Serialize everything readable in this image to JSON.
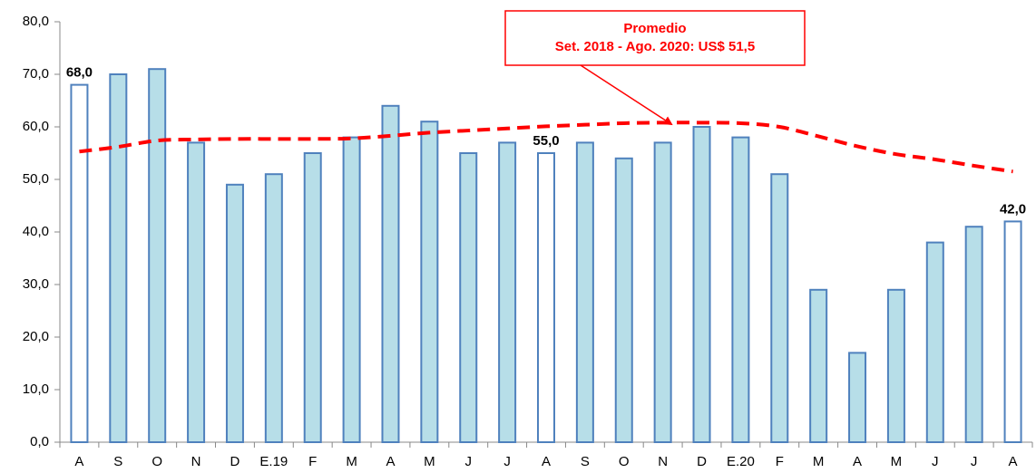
{
  "chart_data": {
    "type": "bar",
    "categories": [
      "A",
      "S",
      "O",
      "N",
      "D",
      "E.19",
      "F",
      "M",
      "A",
      "M",
      "J",
      "J",
      "A",
      "S",
      "O",
      "N",
      "D",
      "E.20",
      "F",
      "M",
      "A",
      "M",
      "J",
      "J",
      "A"
    ],
    "series": [
      {
        "type": "bar",
        "color": "#4f81bd",
        "fill_colors": [
          "#ffffff",
          "#b7dee8",
          "#b7dee8",
          "#b7dee8",
          "#b7dee8",
          "#b7dee8",
          "#b7dee8",
          "#b7dee8",
          "#b7dee8",
          "#b7dee8",
          "#b7dee8",
          "#b7dee8",
          "#ffffff",
          "#b7dee8",
          "#b7dee8",
          "#b7dee8",
          "#b7dee8",
          "#b7dee8",
          "#b7dee8",
          "#b7dee8",
          "#b7dee8",
          "#b7dee8",
          "#b7dee8",
          "#b7dee8",
          "#ffffff"
        ],
        "values": [
          68,
          70,
          71,
          57,
          49,
          51,
          55,
          58,
          64,
          61,
          55,
          57,
          55,
          57,
          54,
          57,
          60,
          58,
          51,
          29,
          17,
          29,
          38,
          41,
          42
        ],
        "value_labels": [
          "68,0",
          null,
          null,
          null,
          null,
          null,
          null,
          null,
          null,
          null,
          null,
          null,
          "55,0",
          null,
          null,
          null,
          null,
          null,
          null,
          null,
          null,
          null,
          null,
          null,
          "42,0"
        ]
      },
      {
        "type": "line",
        "color": "#ff0000",
        "dashed": true,
        "values": [
          55.3,
          56.2,
          57.4,
          57.6,
          57.7,
          57.7,
          57.7,
          57.8,
          58.3,
          58.9,
          59.3,
          59.7,
          60.1,
          60.4,
          60.7,
          60.8,
          60.8,
          60.7,
          60.0,
          58.2,
          56.3,
          54.8,
          53.8,
          52.6,
          51.5
        ]
      }
    ],
    "ylim": [
      0,
      80
    ],
    "yticks": [
      {
        "value": 0,
        "label": "0,0"
      },
      {
        "value": 10,
        "label": "10,0"
      },
      {
        "value": 20,
        "label": "20,0"
      },
      {
        "value": 30,
        "label": "30,0"
      },
      {
        "value": 40,
        "label": "40,0"
      },
      {
        "value": 50,
        "label": "50,0"
      },
      {
        "value": 60,
        "label": "60,0"
      },
      {
        "value": 70,
        "label": "70,0"
      },
      {
        "value": 80,
        "label": "80,0"
      }
    ],
    "grid": false,
    "annotation": {
      "lines": [
        "Promedio",
        "Set. 2018 - Ago. 2020: US$ 51,5"
      ],
      "color": "#ff0000"
    }
  }
}
